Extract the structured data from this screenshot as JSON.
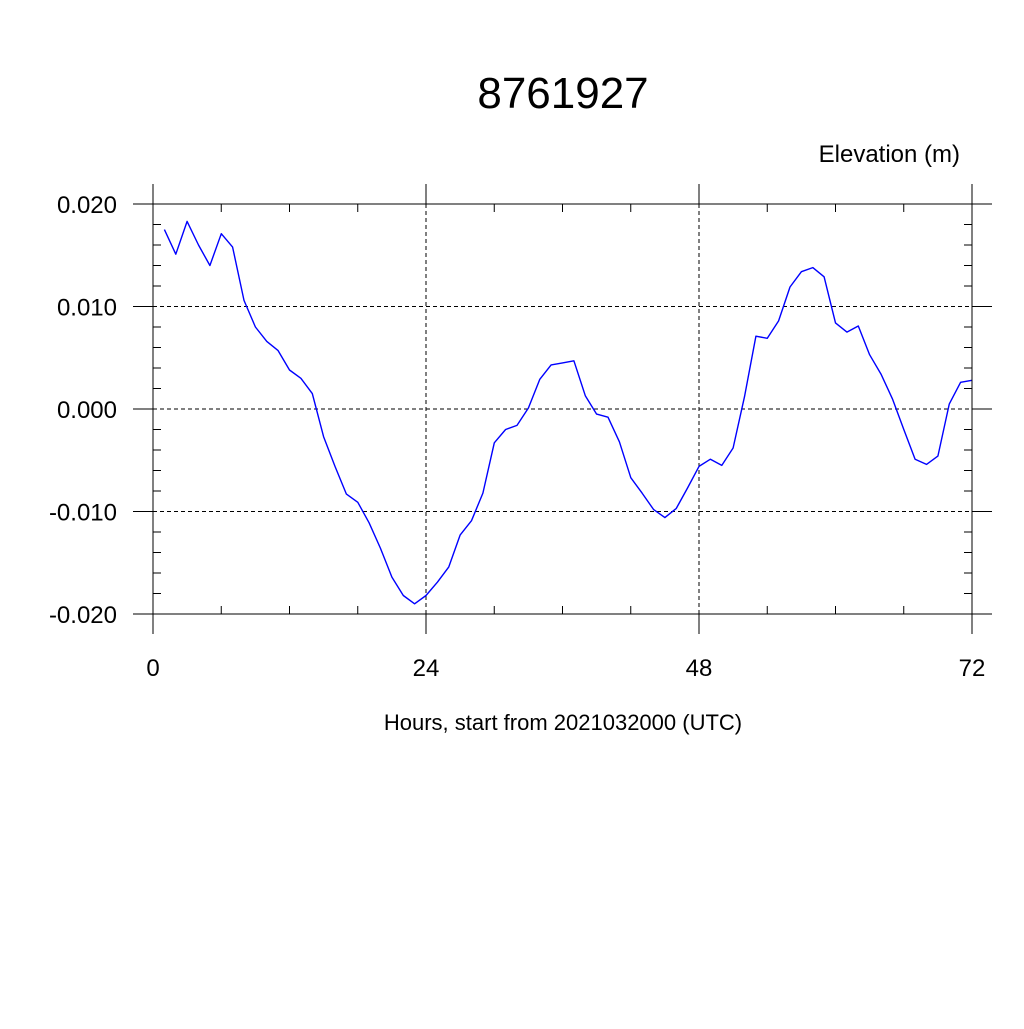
{
  "chart_data": {
    "type": "line",
    "title": "8761927",
    "units_label": "Elevation (m)",
    "xlabel": "Hours, start from 2021032000 (UTC)",
    "ylabel": "",
    "xlim": [
      0,
      72
    ],
    "ylim": [
      -0.02,
      0.02
    ],
    "x_ticks": [
      0,
      24,
      48,
      72
    ],
    "x_tick_labels": [
      "0",
      "24",
      "48",
      "72"
    ],
    "x_minor_step": 6,
    "y_ticks": [
      -0.02,
      -0.01,
      0.0,
      0.01,
      0.02
    ],
    "y_tick_labels": [
      "-0.020",
      "-0.010",
      "0.000",
      "0.010",
      "0.020"
    ],
    "y_minor_step": 0.002,
    "grid": true,
    "legend": "none",
    "line_color": "#0000ff",
    "series": [
      {
        "x": [
          1,
          2,
          3,
          4,
          5,
          6,
          7,
          8,
          9,
          10,
          11,
          12,
          13,
          14,
          15,
          16,
          17,
          18,
          19,
          20,
          21,
          22,
          23,
          24,
          25,
          26,
          27,
          28,
          29,
          30,
          31,
          32,
          33,
          34,
          35,
          36,
          37,
          38,
          39,
          40,
          41,
          42,
          43,
          44,
          45,
          46,
          47,
          48,
          49,
          50,
          51,
          52,
          53,
          54,
          55,
          56,
          57,
          58,
          59,
          60,
          61,
          62,
          63,
          64,
          65,
          66,
          67,
          68,
          69,
          70,
          71,
          72
        ],
        "values": [
          0.0175,
          0.0151,
          0.0183,
          0.016,
          0.014,
          0.0171,
          0.0158,
          0.0106,
          0.008,
          0.0066,
          0.0057,
          0.0038,
          0.003,
          0.0015,
          -0.0027,
          -0.0056,
          -0.0083,
          -0.0091,
          -0.0111,
          -0.0136,
          -0.0164,
          -0.0182,
          -0.019,
          -0.0182,
          -0.0169,
          -0.0154,
          -0.0123,
          -0.0109,
          -0.0082,
          -0.0033,
          -0.002,
          -0.0016,
          0.0001,
          0.0029,
          0.0043,
          0.0045,
          0.0047,
          0.0013,
          -0.0005,
          -0.0008,
          -0.0032,
          -0.0067,
          -0.0082,
          -0.0098,
          -0.0106,
          -0.0097,
          -0.0077,
          -0.0056,
          -0.0049,
          -0.0055,
          -0.0038,
          0.0012,
          0.0071,
          0.0069,
          0.0086,
          0.0119,
          0.0134,
          0.0138,
          0.0129,
          0.0084,
          0.0075,
          0.0081,
          0.0053,
          0.0034,
          0.001,
          -0.002,
          -0.0049,
          -0.0054,
          -0.0046,
          0.0005,
          0.0026,
          0.0028
        ]
      }
    ]
  }
}
